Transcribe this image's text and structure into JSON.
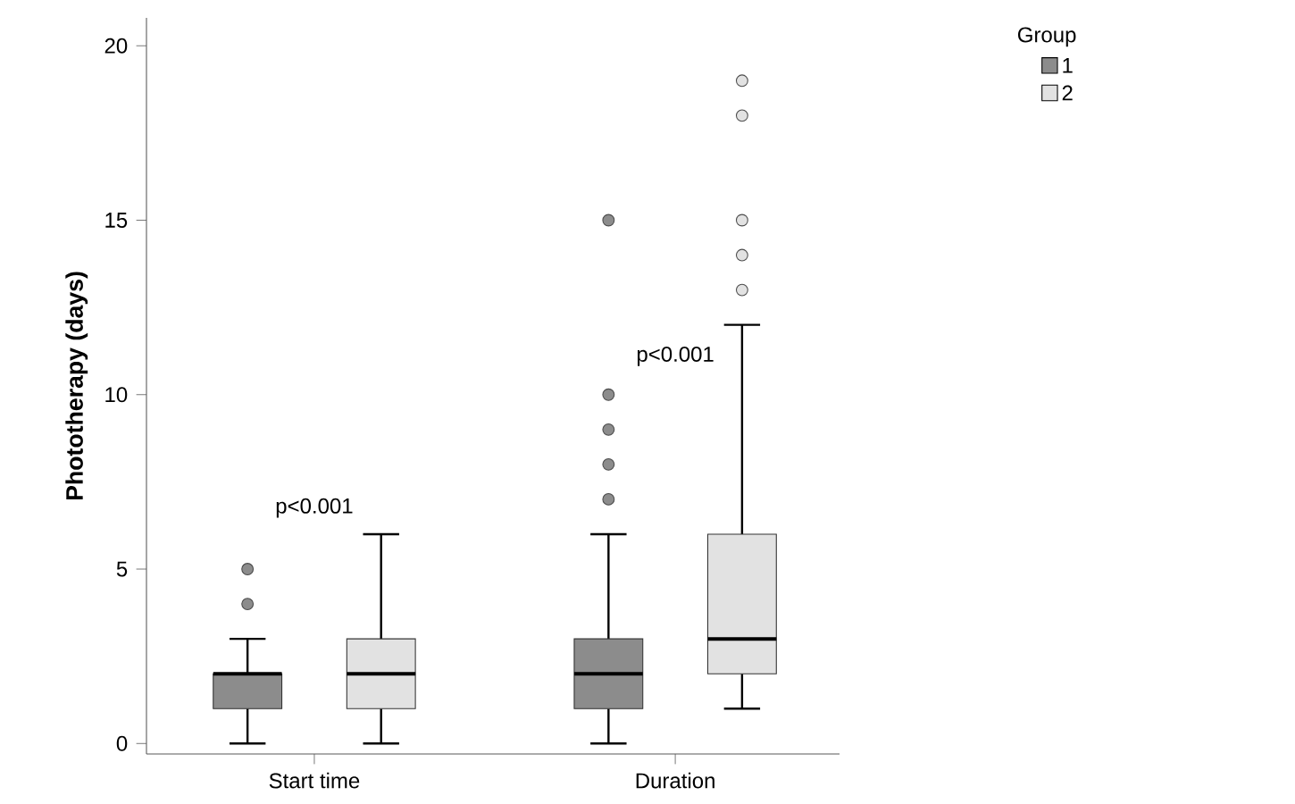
{
  "chart_data": {
    "type": "box",
    "ylabel": "Phototherapy (days)",
    "legend_title": "Group",
    "legend": "top right",
    "categories": [
      "Start time",
      "Duration"
    ],
    "ylim": [
      -0.3,
      20.8
    ],
    "yticks": [
      0,
      5,
      10,
      15,
      20
    ],
    "series": [
      {
        "name": "1",
        "color": "#8c8c8c",
        "boxes": [
          {
            "low": 0,
            "q1": 1,
            "median": 2,
            "q3": 2,
            "high": 3,
            "outliers": [
              4,
              5
            ]
          },
          {
            "low": 0,
            "q1": 1,
            "median": 2,
            "q3": 3,
            "high": 6,
            "outliers": [
              7,
              8,
              9,
              10,
              15
            ]
          }
        ]
      },
      {
        "name": "2",
        "color": "#e2e2e2",
        "boxes": [
          {
            "low": 0,
            "q1": 1,
            "median": 2,
            "q3": 3,
            "high": 6
          },
          {
            "low": 1,
            "q1": 2,
            "median": 3,
            "q3": 6,
            "high": 12,
            "outliers": [
              13,
              14,
              15,
              18,
              19
            ]
          }
        ]
      }
    ],
    "annotations": [
      "p<0.001",
      "p<0.001"
    ]
  }
}
